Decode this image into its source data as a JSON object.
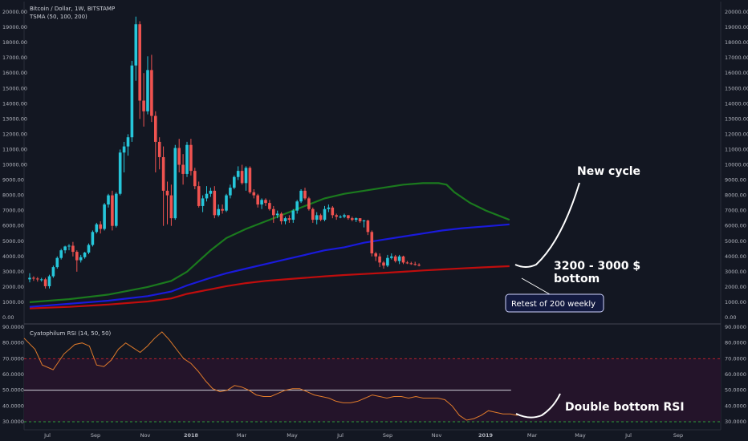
{
  "header": {
    "symbol": "Bitcoin / Dollar, 1W, BITSTAMP",
    "indicator": "TSMA (50, 100, 200)"
  },
  "rsi_header": "Cyatophilum RSI (14, 50, 50)",
  "colors": {
    "background": "#131722",
    "up": "#26c6da",
    "down": "#ef5350",
    "sma50": "#1b7a1e",
    "sma100": "#1a1adc",
    "sma200": "#c00d0d",
    "rsi_line": "#e07b2a",
    "rsi_band": "#24142a"
  },
  "annotations": {
    "new_cycle": "New cycle",
    "bottom_line1": "3200 - 3000 $",
    "bottom_line2": "bottom",
    "retest": "Retest of 200 weekly",
    "double_bottom": "Double bottom RSI"
  },
  "chart_data": [
    {
      "type": "candlestick",
      "price_axis": {
        "ylim": [
          0,
          20000
        ],
        "ticks": [
          "20000.00",
          "19000.00",
          "18000.00",
          "17000.00",
          "16000.00",
          "15000.00",
          "14000.00",
          "13000.00",
          "12000.00",
          "11000.00",
          "10000.00",
          "9000.00",
          "8000.00",
          "7000.00",
          "6000.00",
          "5000.00",
          "4000.00",
          "3000.00",
          "2000.00",
          "1000.00",
          "0.00"
        ]
      },
      "x_axis": {
        "ticks": [
          "Jul",
          "Sep",
          "Nov",
          "2018",
          "Mar",
          "May",
          "Jul",
          "Sep",
          "Nov",
          "2019",
          "Mar",
          "May",
          "Jul",
          "Sep"
        ]
      },
      "candles": [
        [
          2500,
          2900,
          2300,
          2600
        ],
        [
          2600,
          2700,
          2400,
          2550
        ],
        [
          2550,
          2650,
          2350,
          2500
        ],
        [
          2500,
          2600,
          2350,
          2500
        ],
        [
          2500,
          2600,
          1900,
          2050
        ],
        [
          2050,
          2800,
          1900,
          2700
        ],
        [
          2700,
          3400,
          2600,
          3300
        ],
        [
          3300,
          4000,
          3200,
          3900
        ],
        [
          3900,
          4500,
          3800,
          4400
        ],
        [
          4400,
          4700,
          4200,
          4650
        ],
        [
          4650,
          4800,
          4400,
          4700
        ],
        [
          4700,
          4950,
          4000,
          4300
        ],
        [
          4300,
          4400,
          3000,
          3750
        ],
        [
          3750,
          4100,
          3600,
          3950
        ],
        [
          3950,
          4300,
          3850,
          4250
        ],
        [
          4250,
          4850,
          4150,
          4750
        ],
        [
          4750,
          5700,
          4650,
          5600
        ],
        [
          5600,
          6200,
          5500,
          6100
        ],
        [
          6100,
          6300,
          5500,
          5800
        ],
        [
          5800,
          7500,
          5700,
          7400
        ],
        [
          7400,
          8100,
          7200,
          8000
        ],
        [
          8000,
          8300,
          5700,
          6000
        ],
        [
          6000,
          8200,
          5900,
          8100
        ],
        [
          8100,
          11000,
          8000,
          10800
        ],
        [
          10800,
          11500,
          9500,
          11200
        ],
        [
          11200,
          12000,
          10600,
          11800
        ],
        [
          11800,
          16800,
          11500,
          16500
        ],
        [
          16500,
          19700,
          15500,
          19200
        ],
        [
          19200,
          19400,
          13000,
          14200
        ],
        [
          14200,
          16000,
          12500,
          13500
        ],
        [
          13500,
          17100,
          13300,
          16200
        ],
        [
          16200,
          17200,
          12800,
          13200
        ],
        [
          13200,
          13500,
          9500,
          11500
        ],
        [
          11500,
          11800,
          9700,
          10500
        ],
        [
          10500,
          11200,
          6000,
          8300
        ],
        [
          8300,
          8900,
          6100,
          8000
        ],
        [
          8000,
          8700,
          6000,
          6500
        ],
        [
          6500,
          11300,
          6400,
          11100
        ],
        [
          11100,
          11700,
          9500,
          10000
        ],
        [
          10000,
          10700,
          8700,
          9400
        ],
        [
          9400,
          11500,
          9200,
          11300
        ],
        [
          11300,
          11700,
          9300,
          9600
        ],
        [
          9600,
          9800,
          8400,
          8600
        ],
        [
          8600,
          8900,
          7200,
          7300
        ],
        [
          7300,
          8000,
          6900,
          7800
        ],
        [
          7800,
          8600,
          7600,
          8100
        ],
        [
          8100,
          8500,
          7900,
          8300
        ],
        [
          8300,
          8600,
          6500,
          6700
        ],
        [
          6700,
          7400,
          6600,
          7100
        ],
        [
          7100,
          7400,
          6800,
          7000
        ],
        [
          7000,
          8100,
          6900,
          8000
        ],
        [
          8000,
          8700,
          7800,
          8500
        ],
        [
          8500,
          9300,
          8400,
          9200
        ],
        [
          9200,
          9900,
          9000,
          9600
        ],
        [
          9600,
          10000,
          8700,
          8800
        ],
        [
          8800,
          9900,
          8300,
          9800
        ],
        [
          9800,
          9900,
          8100,
          8200
        ],
        [
          8200,
          8400,
          7800,
          8000
        ],
        [
          8000,
          8100,
          7200,
          7400
        ],
        [
          7400,
          7800,
          7100,
          7700
        ],
        [
          7700,
          7800,
          7300,
          7500
        ],
        [
          7500,
          7700,
          7000,
          7100
        ],
        [
          7100,
          7300,
          6200,
          6700
        ],
        [
          6700,
          7000,
          6500,
          6800
        ],
        [
          6800,
          6900,
          6100,
          6300
        ],
        [
          6300,
          6600,
          6100,
          6500
        ],
        [
          6500,
          6700,
          6200,
          6400
        ],
        [
          6400,
          7100,
          6200,
          7000
        ],
        [
          7000,
          7700,
          6800,
          7600
        ],
        [
          7600,
          8400,
          7500,
          8300
        ],
        [
          8300,
          8500,
          7700,
          7800
        ],
        [
          7800,
          7900,
          7000,
          7100
        ],
        [
          7100,
          7200,
          6200,
          6400
        ],
        [
          6400,
          6900,
          6100,
          6700
        ],
        [
          6700,
          6800,
          6300,
          6400
        ],
        [
          6400,
          7300,
          6300,
          7100
        ],
        [
          7100,
          7400,
          6900,
          7200
        ],
        [
          7200,
          7300,
          6500,
          6700
        ],
        [
          6700,
          6800,
          6400,
          6600
        ],
        [
          6600,
          6700,
          6500,
          6600
        ],
        [
          6600,
          6800,
          6500,
          6700
        ],
        [
          6700,
          6700,
          6400,
          6500
        ],
        [
          6500,
          6600,
          6300,
          6400
        ],
        [
          6400,
          6550,
          6250,
          6500
        ],
        [
          6500,
          6500,
          6200,
          6300
        ],
        [
          6300,
          6400,
          5900,
          6350
        ],
        [
          6350,
          6400,
          5400,
          5600
        ],
        [
          5600,
          5700,
          4000,
          4200
        ],
        [
          4200,
          4300,
          3700,
          4000
        ],
        [
          4000,
          4200,
          3300,
          3600
        ],
        [
          3600,
          3700,
          3200,
          3400
        ],
        [
          3400,
          4100,
          3300,
          3900
        ],
        [
          3900,
          4200,
          3800,
          4000
        ],
        [
          4000,
          4100,
          3600,
          3700
        ],
        [
          3700,
          4100,
          3500,
          4000
        ],
        [
          4000,
          4050,
          3500,
          3600
        ],
        [
          3600,
          3700,
          3500,
          3550
        ],
        [
          3550,
          3650,
          3450,
          3500
        ],
        [
          3500,
          3650,
          3400,
          3450
        ],
        [
          3450,
          3550,
          3350,
          3420
        ]
      ],
      "sma50": [
        [
          0,
          1000
        ],
        [
          10,
          1200
        ],
        [
          20,
          1500
        ],
        [
          30,
          2000
        ],
        [
          36,
          2400
        ],
        [
          40,
          3000
        ],
        [
          46,
          4400
        ],
        [
          50,
          5200
        ],
        [
          55,
          5800
        ],
        [
          60,
          6300
        ],
        [
          65,
          6800
        ],
        [
          70,
          7300
        ],
        [
          75,
          7800
        ],
        [
          80,
          8100
        ],
        [
          85,
          8300
        ],
        [
          90,
          8500
        ],
        [
          95,
          8700
        ],
        [
          100,
          8800
        ],
        [
          104,
          8800
        ],
        [
          106,
          8700
        ],
        [
          108,
          8200
        ],
        [
          112,
          7500
        ],
        [
          116,
          7000
        ],
        [
          120,
          6600
        ],
        [
          122,
          6400
        ]
      ],
      "sma100": [
        [
          0,
          700
        ],
        [
          10,
          900
        ],
        [
          20,
          1100
        ],
        [
          30,
          1400
        ],
        [
          36,
          1700
        ],
        [
          40,
          2100
        ],
        [
          46,
          2600
        ],
        [
          50,
          2900
        ],
        [
          55,
          3200
        ],
        [
          60,
          3500
        ],
        [
          65,
          3800
        ],
        [
          70,
          4100
        ],
        [
          75,
          4400
        ],
        [
          80,
          4600
        ],
        [
          85,
          4900
        ],
        [
          90,
          5100
        ],
        [
          95,
          5300
        ],
        [
          100,
          5500
        ],
        [
          105,
          5700
        ],
        [
          110,
          5850
        ],
        [
          115,
          5950
        ],
        [
          120,
          6050
        ],
        [
          122,
          6100
        ]
      ],
      "sma200": [
        [
          0,
          600
        ],
        [
          10,
          700
        ],
        [
          20,
          850
        ],
        [
          30,
          1050
        ],
        [
          36,
          1250
        ],
        [
          40,
          1550
        ],
        [
          46,
          1850
        ],
        [
          50,
          2050
        ],
        [
          55,
          2250
        ],
        [
          60,
          2400
        ],
        [
          65,
          2500
        ],
        [
          70,
          2600
        ],
        [
          75,
          2700
        ],
        [
          80,
          2780
        ],
        [
          85,
          2850
        ],
        [
          90,
          2920
        ],
        [
          95,
          3000
        ],
        [
          100,
          3080
        ],
        [
          105,
          3150
        ],
        [
          110,
          3220
        ],
        [
          115,
          3280
        ],
        [
          120,
          3340
        ],
        [
          122,
          3360
        ]
      ]
    },
    {
      "type": "line",
      "title": "Cyatophilum RSI (14, 50, 50)",
      "ylim": [
        30,
        90
      ],
      "ticks": [
        "90.0000",
        "80.0000",
        "70.0000",
        "60.0000",
        "50.0000",
        "40.0000",
        "30.0000"
      ],
      "levels": [
        70,
        50,
        30
      ],
      "values": [
        [
          0,
          83
        ],
        [
          3,
          76
        ],
        [
          5,
          66
        ],
        [
          8,
          63
        ],
        [
          11,
          73
        ],
        [
          14,
          79
        ],
        [
          16,
          80
        ],
        [
          18,
          78
        ],
        [
          20,
          66
        ],
        [
          22,
          65
        ],
        [
          24,
          69
        ],
        [
          26,
          76
        ],
        [
          28,
          80
        ],
        [
          30,
          77
        ],
        [
          32,
          74
        ],
        [
          34,
          78
        ],
        [
          36,
          83
        ],
        [
          38,
          87
        ],
        [
          40,
          82
        ],
        [
          42,
          76
        ],
        [
          44,
          70
        ],
        [
          46,
          67
        ],
        [
          48,
          62
        ],
        [
          50,
          56
        ],
        [
          52,
          51
        ],
        [
          54,
          49
        ],
        [
          56,
          50
        ],
        [
          58,
          53
        ],
        [
          60,
          52
        ],
        [
          62,
          50
        ],
        [
          64,
          47
        ],
        [
          66,
          46
        ],
        [
          68,
          46
        ],
        [
          70,
          48
        ],
        [
          72,
          50
        ],
        [
          74,
          51
        ],
        [
          76,
          51
        ],
        [
          78,
          49
        ],
        [
          80,
          47
        ],
        [
          82,
          46
        ],
        [
          84,
          45
        ],
        [
          86,
          43
        ],
        [
          88,
          42
        ],
        [
          90,
          42
        ],
        [
          92,
          43
        ],
        [
          94,
          45
        ],
        [
          96,
          47
        ],
        [
          98,
          46
        ],
        [
          100,
          45
        ],
        [
          102,
          46
        ],
        [
          104,
          46
        ],
        [
          106,
          45
        ],
        [
          108,
          46
        ],
        [
          110,
          45
        ],
        [
          112,
          45
        ],
        [
          114,
          45
        ],
        [
          116,
          44
        ],
        [
          118,
          40
        ],
        [
          120,
          34
        ],
        [
          122,
          31
        ],
        [
          124,
          32
        ],
        [
          126,
          34
        ],
        [
          128,
          37
        ],
        [
          130,
          36
        ],
        [
          132,
          35
        ],
        [
          134,
          35
        ],
        [
          136,
          34
        ]
      ]
    }
  ]
}
